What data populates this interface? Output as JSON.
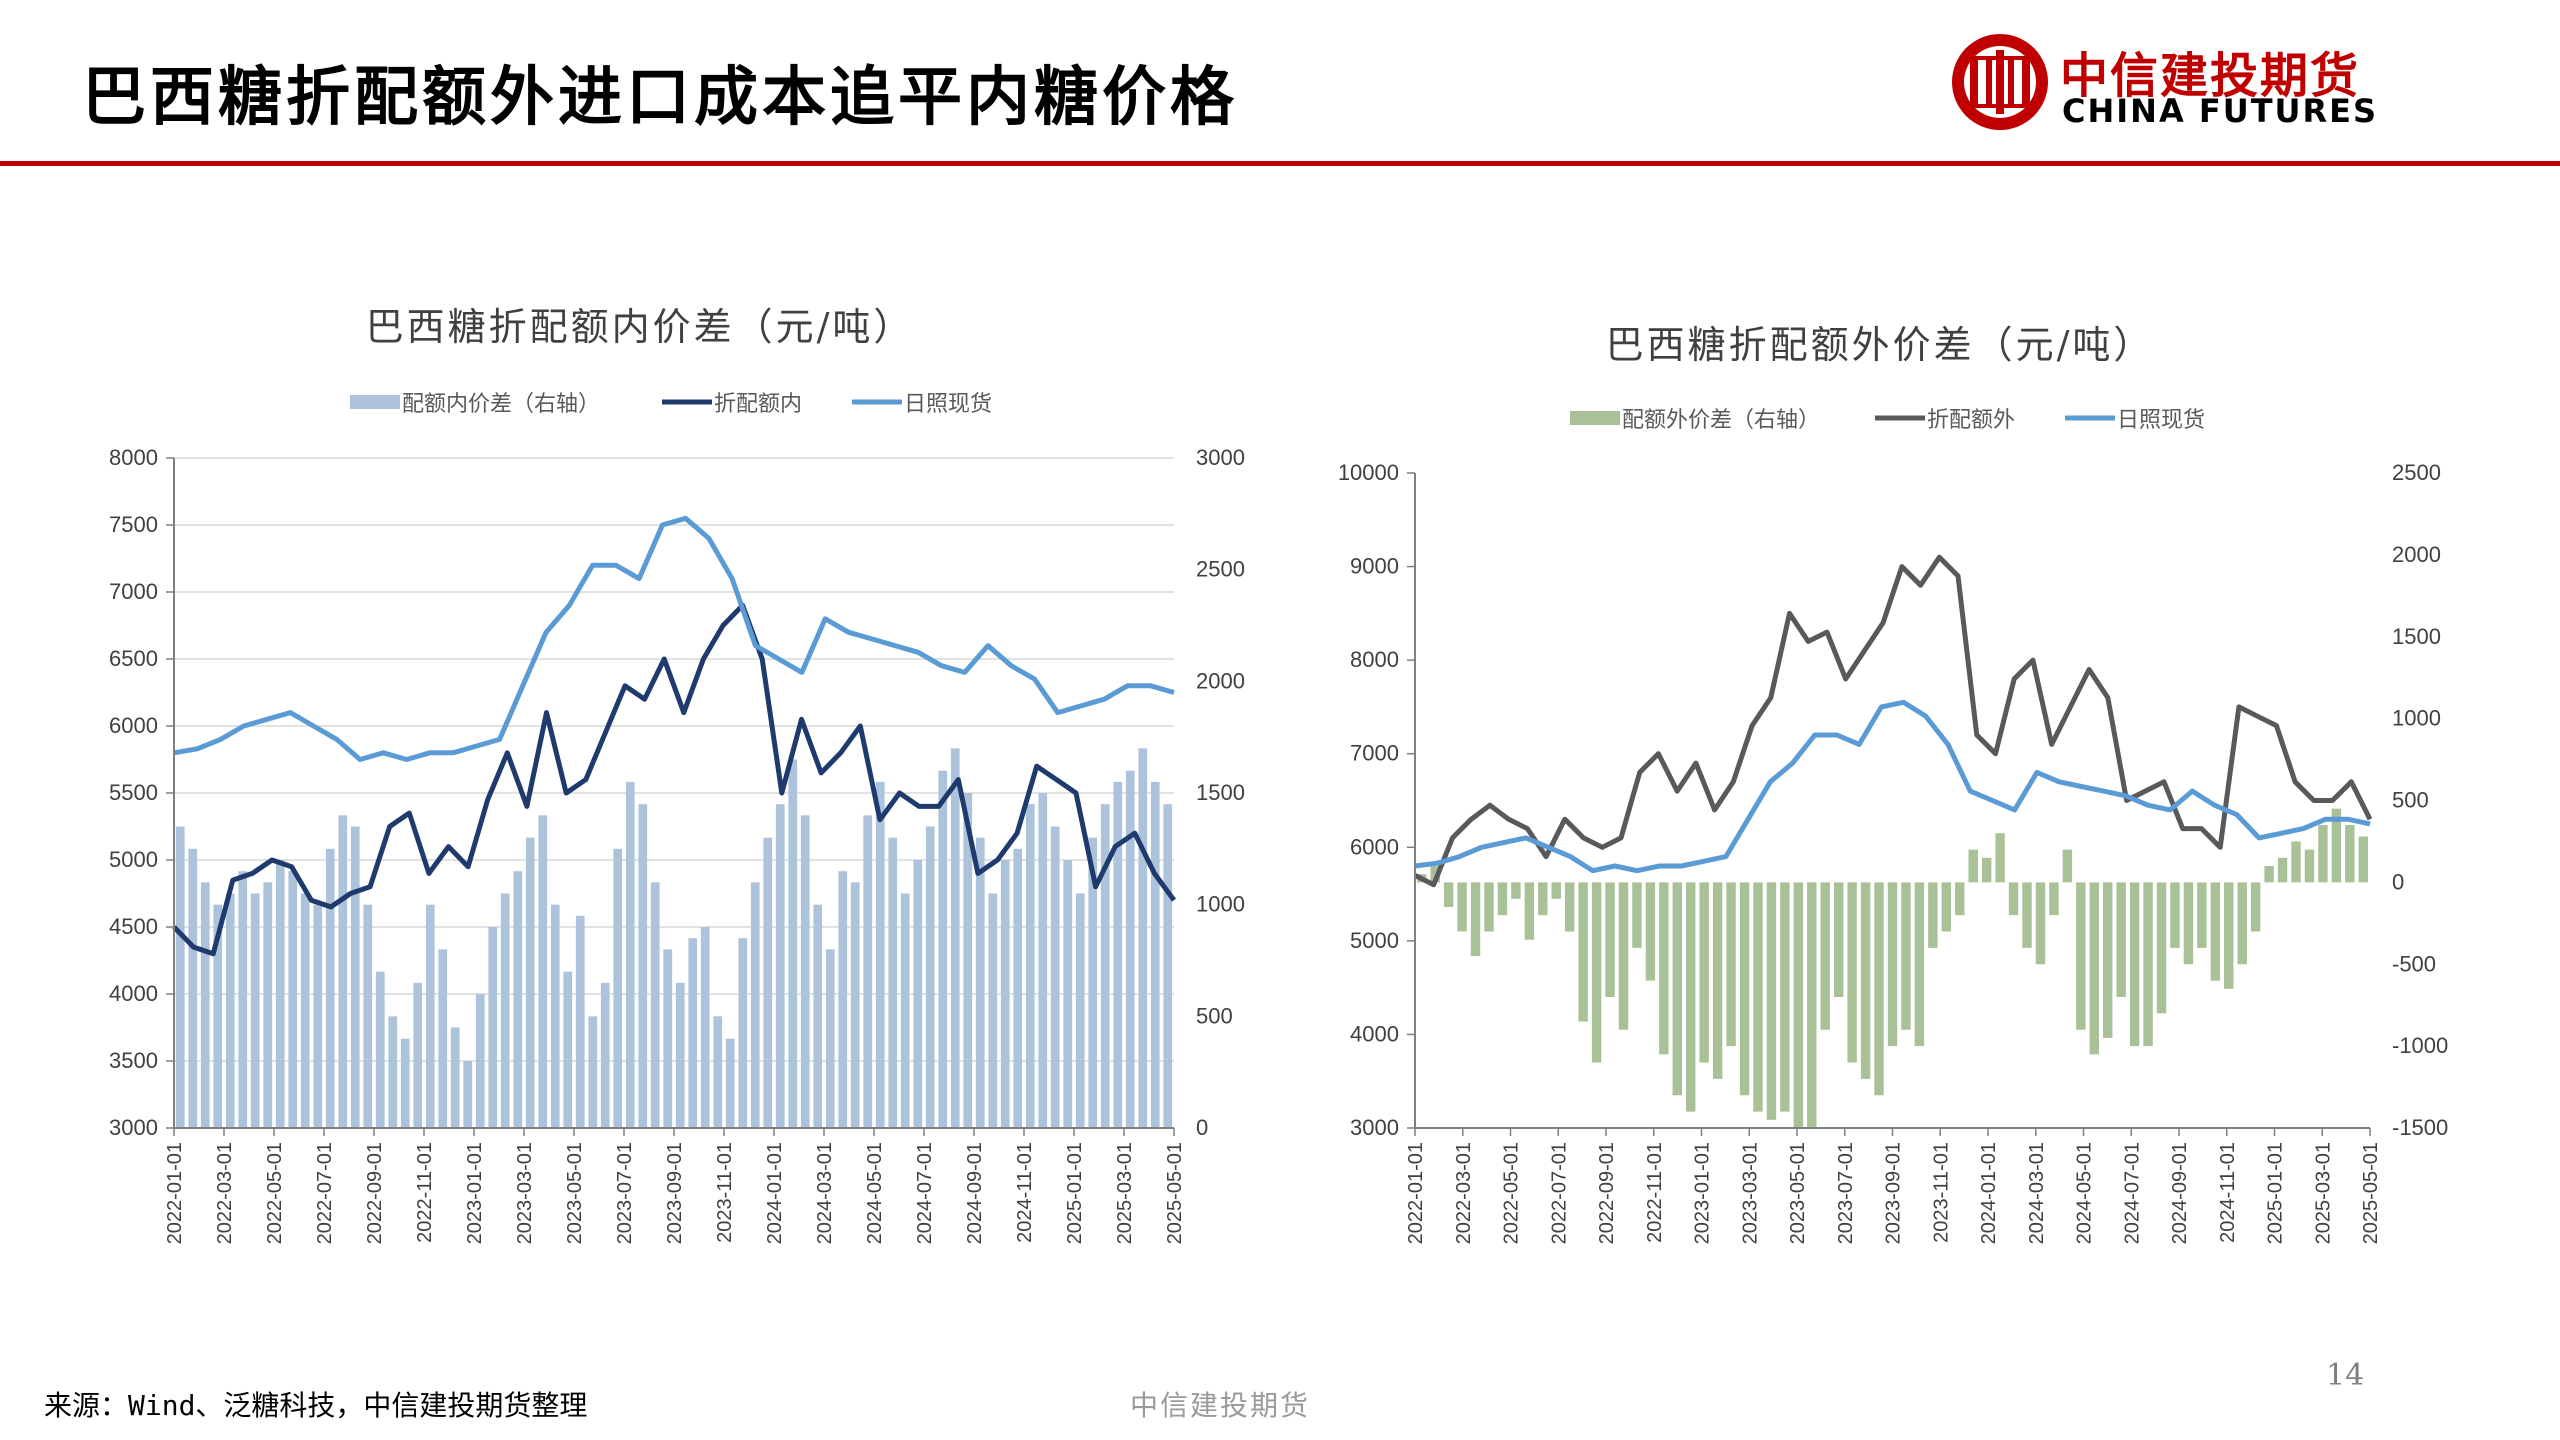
{
  "slide": {
    "title": "巴西糖折配额外进口成本追平内糖价格",
    "brand_cn": "中信建投期货",
    "brand_en": "CHINA FUTURES",
    "source": "来源：Wind、泛糖科技，中信建投期货整理",
    "footer": "中信建投期货",
    "page": "14"
  },
  "colors": {
    "accent_red": "#c00000",
    "left_bar": "#adc3dc",
    "left_bar_legend": "#2e5f8f",
    "left_line": "#1f3b6e",
    "right_bar": "#a9c196",
    "right_bar_legend": "#4f7a35",
    "right_line": "#595959",
    "spot": "#5b9bd5"
  },
  "chart_data": [
    {
      "type": "bar+line",
      "title": "巴西糖折配额内价差（元/吨）",
      "legend": [
        "配额内价差（右轴）",
        "折配额内",
        "日照现货"
      ],
      "legend_position": "top",
      "x_tick_labels": [
        "2022-01-01",
        "2022-03-01",
        "2022-05-01",
        "2022-07-01",
        "2022-09-01",
        "2022-11-01",
        "2023-01-01",
        "2023-03-01",
        "2023-05-01",
        "2023-07-01",
        "2023-09-01",
        "2023-11-01",
        "2024-01-01",
        "2024-03-01",
        "2024-05-01",
        "2024-07-01",
        "2024-09-01",
        "2024-11-01",
        "2025-01-01",
        "2025-03-01",
        "2025-05-01"
      ],
      "y_left": {
        "min": 3000,
        "max": 8000,
        "step": 500,
        "ticks": [
          "3000",
          "3500",
          "4000",
          "4500",
          "5000",
          "5500",
          "6000",
          "6500",
          "7000",
          "7500",
          "8000"
        ]
      },
      "y_right": {
        "min": 0,
        "max": 3000,
        "step": 500,
        "ticks": [
          "0",
          "500",
          "1000",
          "1500",
          "2000",
          "2500",
          "3000"
        ]
      },
      "grid": "horizontal",
      "series": [
        {
          "name": "折配额内",
          "type": "line",
          "axis": "left",
          "values": [
            4500,
            4350,
            4300,
            4850,
            4900,
            5000,
            4950,
            4700,
            4650,
            4750,
            4800,
            5250,
            5350,
            4900,
            5100,
            4950,
            5450,
            5800,
            5400,
            6100,
            5500,
            5600,
            5950,
            6300,
            6200,
            6500,
            6100,
            6500,
            6750,
            6900,
            6500,
            5500,
            6050,
            5650,
            5800,
            6000,
            5300,
            5500,
            5400,
            5400,
            5600,
            4900,
            5000,
            5200,
            5700,
            5600,
            5500,
            4800,
            5100,
            5200,
            4900,
            4700
          ]
        },
        {
          "name": "日照现货",
          "type": "line",
          "axis": "left",
          "values": [
            5800,
            5830,
            5900,
            6000,
            6050,
            6100,
            6000,
            5900,
            5750,
            5800,
            5750,
            5800,
            5800,
            5850,
            5900,
            6300,
            6700,
            6900,
            7200,
            7200,
            7100,
            7500,
            7550,
            7400,
            7100,
            6600,
            6500,
            6400,
            6800,
            6700,
            6650,
            6600,
            6550,
            6450,
            6400,
            6600,
            6450,
            6350,
            6100,
            6150,
            6200,
            6300,
            6300,
            6250
          ]
        },
        {
          "name": "配额内价差（右轴）",
          "type": "bar",
          "axis": "right",
          "values": [
            1350,
            1250,
            1100,
            1000,
            1050,
            1150,
            1050,
            1100,
            1200,
            1150,
            1050,
            1000,
            1250,
            1400,
            1350,
            1000,
            700,
            500,
            400,
            650,
            1000,
            800,
            450,
            300,
            600,
            900,
            1050,
            1150,
            1300,
            1400,
            1000,
            700,
            950,
            500,
            650,
            1250,
            1550,
            1450,
            1100,
            800,
            650,
            850,
            900,
            500,
            400,
            850,
            1100,
            1300,
            1450,
            1650,
            1400,
            1000,
            800,
            1150,
            1100,
            1400,
            1550,
            1300,
            1050,
            1200,
            1350,
            1600,
            1700,
            1500,
            1300,
            1050,
            1200,
            1250,
            1450,
            1500,
            1350,
            1200,
            1050,
            1300,
            1450,
            1550,
            1600,
            1700,
            1550,
            1450
          ]
        }
      ]
    },
    {
      "type": "bar+line",
      "title": "巴西糖折配额外价差（元/吨）",
      "legend": [
        "配额外价差（右轴）",
        "折配额外",
        "日照现货"
      ],
      "legend_position": "top",
      "x_tick_labels": [
        "2022-01-01",
        "2022-03-01",
        "2022-05-01",
        "2022-07-01",
        "2022-09-01",
        "2022-11-01",
        "2023-01-01",
        "2023-03-01",
        "2023-05-01",
        "2023-07-01",
        "2023-09-01",
        "2023-11-01",
        "2024-01-01",
        "2024-03-01",
        "2024-05-01",
        "2024-07-01",
        "2024-09-01",
        "2024-11-01",
        "2025-01-01",
        "2025-03-01",
        "2025-05-01"
      ],
      "y_left": {
        "min": 3000,
        "max": 10000,
        "step": 1000,
        "ticks": [
          "3000",
          "4000",
          "5000",
          "6000",
          "7000",
          "8000",
          "9000",
          "10000"
        ]
      },
      "y_right": {
        "min": -1500,
        "max": 2500,
        "step": 500,
        "ticks": [
          "-1500",
          "-1000",
          "-500",
          "0",
          "500",
          "1000",
          "1500",
          "2000",
          "2500"
        ]
      },
      "grid": "none",
      "series": [
        {
          "name": "折配额外",
          "type": "line",
          "axis": "left",
          "values": [
            5700,
            5600,
            6100,
            6300,
            6450,
            6300,
            6200,
            5900,
            6300,
            6100,
            6000,
            6100,
            6800,
            7000,
            6600,
            6900,
            6400,
            6700,
            7300,
            7600,
            8500,
            8200,
            8300,
            7800,
            8100,
            8400,
            9000,
            8800,
            9100,
            8900,
            7200,
            7000,
            7800,
            8000,
            7100,
            7500,
            7900,
            7600,
            6500,
            6600,
            6700,
            6200,
            6200,
            6000,
            7500,
            7400,
            7300,
            6700,
            6500,
            6500,
            6700,
            6300
          ]
        },
        {
          "name": "日照现货",
          "type": "line",
          "axis": "left",
          "values": [
            5800,
            5830,
            5900,
            6000,
            6050,
            6100,
            6000,
            5900,
            5750,
            5800,
            5750,
            5800,
            5800,
            5850,
            5900,
            6300,
            6700,
            6900,
            7200,
            7200,
            7100,
            7500,
            7550,
            7400,
            7100,
            6600,
            6500,
            6400,
            6800,
            6700,
            6650,
            6600,
            6550,
            6450,
            6400,
            6600,
            6450,
            6350,
            6100,
            6150,
            6200,
            6300,
            6300,
            6250
          ]
        },
        {
          "name": "配额外价差（右轴）",
          "type": "bar",
          "axis": "right",
          "values": [
            50,
            100,
            -150,
            -300,
            -450,
            -300,
            -200,
            -100,
            -350,
            -200,
            -100,
            -300,
            -850,
            -1100,
            -700,
            -900,
            -400,
            -600,
            -1050,
            -1300,
            -1400,
            -1100,
            -1200,
            -1000,
            -1300,
            -1400,
            -1450,
            -1400,
            -1500,
            -1500,
            -900,
            -700,
            -1100,
            -1200,
            -1300,
            -1000,
            -900,
            -1000,
            -400,
            -300,
            -200,
            200,
            150,
            300,
            -200,
            -400,
            -500,
            -200,
            200,
            -900,
            -1050,
            -950,
            -700,
            -1000,
            -1000,
            -800,
            -400,
            -500,
            -400,
            -600,
            -650,
            -500,
            -300,
            100,
            150,
            250,
            200,
            350,
            450,
            350,
            280
          ]
        }
      ]
    }
  ]
}
